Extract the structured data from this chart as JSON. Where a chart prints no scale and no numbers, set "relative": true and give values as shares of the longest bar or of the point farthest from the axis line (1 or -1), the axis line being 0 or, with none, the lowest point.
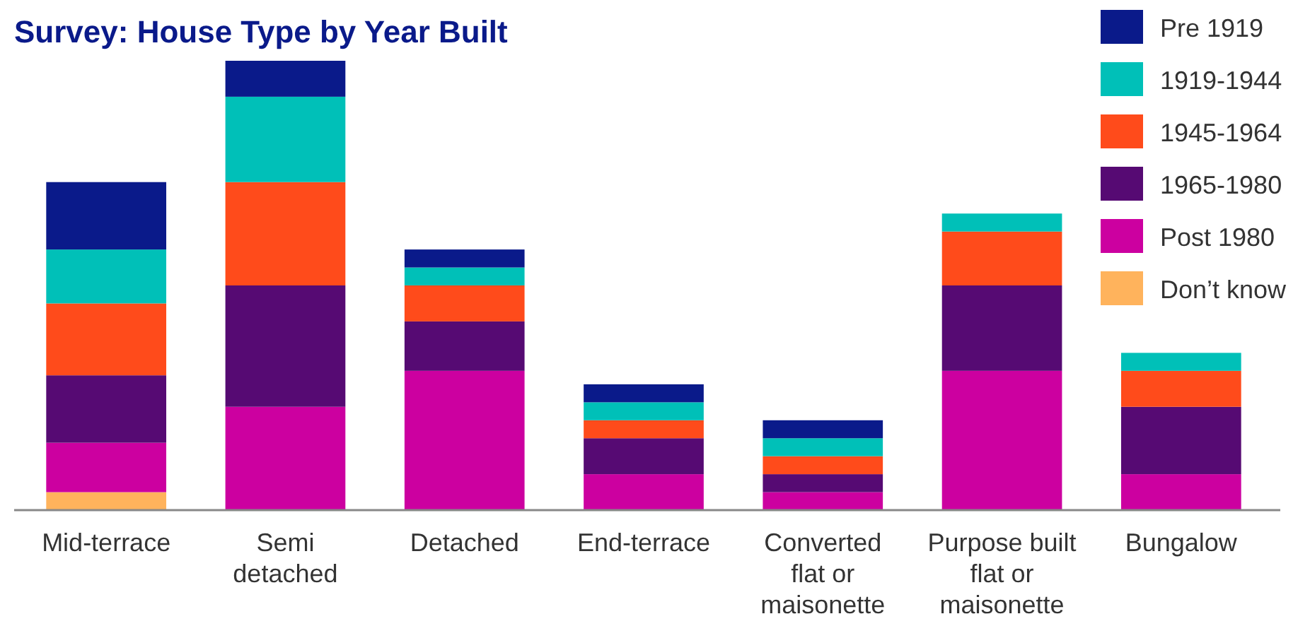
{
  "chart_data": {
    "type": "bar",
    "title": "Survey: House Type by Year Built",
    "categories": [
      "Mid-terrace",
      "Semi detached",
      "Detached",
      "End-terrace",
      "Converted flat or maisonette",
      "Purpose built flat or maisonette",
      "Bungalow"
    ],
    "stacked": true,
    "relative": true,
    "legend": "top right",
    "series": [
      {
        "name": "Don’t know",
        "color": "#ffb35c",
        "values": [
          0.04,
          0,
          0,
          0,
          0,
          0,
          0
        ]
      },
      {
        "name": "Post 1980",
        "color": "#cc00a0",
        "values": [
          0.11,
          0.23,
          0.31,
          0.08,
          0.04,
          0.31,
          0.08
        ]
      },
      {
        "name": "1965-1980",
        "color": "#560a73",
        "values": [
          0.15,
          0.27,
          0.11,
          0.08,
          0.04,
          0.19,
          0.15
        ]
      },
      {
        "name": "1945-1964",
        "color": "#ff4b1b",
        "values": [
          0.16,
          0.23,
          0.08,
          0.04,
          0.04,
          0.12,
          0.08
        ]
      },
      {
        "name": "1919-1944",
        "color": "#00c0b8",
        "values": [
          0.12,
          0.19,
          0.04,
          0.04,
          0.04,
          0.04,
          0.04
        ]
      },
      {
        "name": "Pre 1919",
        "color": "#0a1a8a",
        "values": [
          0.15,
          0.08,
          0.04,
          0.04,
          0.04,
          0,
          0
        ]
      }
    ]
  }
}
